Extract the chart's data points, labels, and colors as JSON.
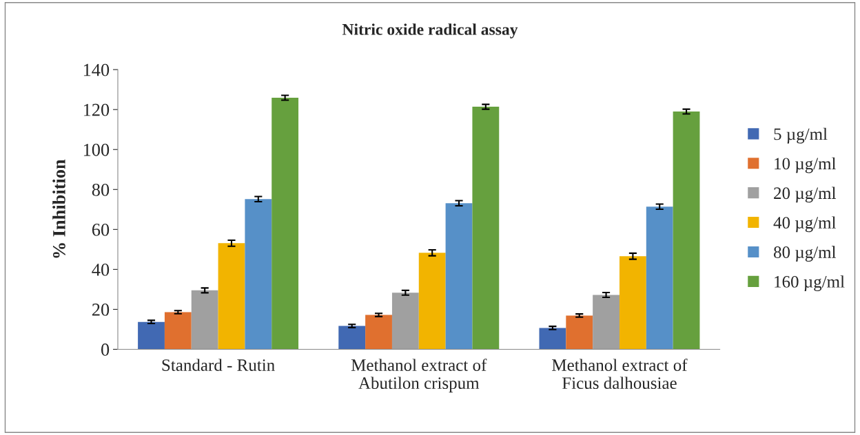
{
  "chart_data": {
    "type": "bar",
    "title": "Nitric oxide radical assay",
    "ylabel": "% Inhibition",
    "categories": [
      "Standard - Rutin",
      "Methanol extract of\nAbutilon crispum",
      "Methanol extract of\nFicus dalhousiae"
    ],
    "series": [
      {
        "name": "5 µg/ml",
        "color": "#4169b3",
        "values": [
          13.7,
          11.7,
          10.7
        ],
        "errors": [
          0.8,
          0.8,
          0.8
        ]
      },
      {
        "name": "10 µg/ml",
        "color": "#e0702f",
        "values": [
          18.6,
          17.2,
          16.9
        ],
        "errors": [
          0.8,
          0.8,
          0.8
        ]
      },
      {
        "name": "20 µg/ml",
        "color": "#a0a0a0",
        "values": [
          29.5,
          28.3,
          27.2
        ],
        "errors": [
          1.2,
          1.2,
          1.2
        ]
      },
      {
        "name": "40 µg/ml",
        "color": "#f2b400",
        "values": [
          53.1,
          48.3,
          46.6
        ],
        "errors": [
          1.5,
          1.5,
          1.5
        ]
      },
      {
        "name": "80 µg/ml",
        "color": "#5690c8",
        "values": [
          75.2,
          73.1,
          71.4
        ],
        "errors": [
          1.3,
          1.3,
          1.3
        ]
      },
      {
        "name": "160 µg/ml",
        "color": "#66a03e",
        "values": [
          125.9,
          121.4,
          119.0
        ],
        "errors": [
          1.2,
          1.2,
          1.2
        ]
      }
    ],
    "ylim": [
      0,
      140
    ],
    "yticks": [
      0,
      20,
      40,
      60,
      80,
      100,
      120,
      140
    ],
    "grid": false,
    "legend": "right"
  }
}
